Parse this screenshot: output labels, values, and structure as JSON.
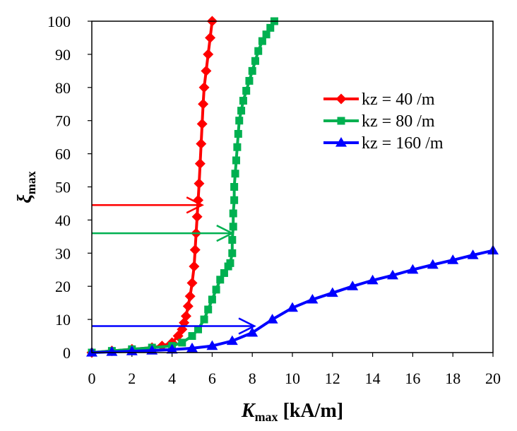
{
  "chart_data": {
    "type": "line",
    "title": "",
    "xlabel": {
      "main": "K",
      "sub": "max",
      "rest": " [kA/m]"
    },
    "ylabel": {
      "main": "ξ",
      "sub": "max"
    },
    "xlim": [
      0,
      20
    ],
    "ylim": [
      0,
      100
    ],
    "xticks": [
      0,
      2,
      4,
      6,
      8,
      10,
      12,
      14,
      16,
      18,
      20
    ],
    "yticks": [
      0,
      10,
      20,
      30,
      40,
      50,
      60,
      70,
      80,
      90,
      100
    ],
    "grid": false,
    "legend_position": "right",
    "series": [
      {
        "name": "kz = 40 /m",
        "color": "#ff0000",
        "marker": "diamond",
        "x": [
          0,
          1,
          2,
          3,
          3.5,
          4,
          4.3,
          4.5,
          4.6,
          4.7,
          4.8,
          4.9,
          5.0,
          5.1,
          5.15,
          5.2,
          5.25,
          5.3,
          5.35,
          5.4,
          5.45,
          5.5,
          5.55,
          5.6,
          5.7,
          5.8,
          5.9,
          6.0
        ],
        "y": [
          0,
          0.5,
          1,
          1.5,
          2,
          3,
          5,
          7,
          9,
          11,
          14,
          17,
          21,
          26,
          31,
          36,
          41,
          46,
          51,
          57,
          63,
          69,
          75,
          80,
          85,
          90,
          95,
          100
        ]
      },
      {
        "name": "kz = 80 /m",
        "color": "#00b050",
        "marker": "square",
        "x": [
          0,
          1,
          2,
          3,
          4,
          4.5,
          5,
          5.3,
          5.6,
          5.8,
          6.0,
          6.2,
          6.4,
          6.6,
          6.8,
          6.9,
          7.0,
          7.0,
          7.05,
          7.05,
          7.1,
          7.1,
          7.15,
          7.2,
          7.25,
          7.3,
          7.35,
          7.45,
          7.55,
          7.7,
          7.85,
          8.0,
          8.15,
          8.3,
          8.5,
          8.7,
          8.9,
          9.1
        ],
        "y": [
          0,
          0.5,
          1,
          1.5,
          2,
          3,
          5,
          7,
          10,
          13,
          16,
          19,
          22,
          24,
          26,
          27,
          30,
          34,
          38,
          42,
          46,
          50,
          54,
          58,
          62,
          66,
          70,
          73,
          76,
          79,
          82,
          85,
          88,
          91,
          94,
          96,
          98,
          100
        ]
      },
      {
        "name": "kz = 160 /m",
        "color": "#0000ff",
        "marker": "triangle",
        "x": [
          0,
          1,
          2,
          3,
          4,
          5,
          6,
          7,
          8,
          9,
          10,
          11,
          12,
          13,
          14,
          15,
          16,
          17,
          18,
          19,
          20
        ],
        "y": [
          0,
          0.2,
          0.4,
          0.6,
          0.9,
          1.3,
          2,
          3.5,
          6,
          10,
          13.5,
          16,
          18,
          20,
          21.8,
          23.3,
          25,
          26.5,
          27.9,
          29.4,
          30.8
        ]
      }
    ],
    "annotations": [
      {
        "type": "arrow",
        "color": "#ff0000",
        "from": [
          0,
          44.5
        ],
        "to": [
          5.5,
          44.5
        ]
      },
      {
        "type": "arrow",
        "color": "#00b050",
        "from": [
          0,
          36
        ],
        "to": [
          7,
          36
        ]
      },
      {
        "type": "arrow",
        "color": "#0000ff",
        "from": [
          0,
          8
        ],
        "to": [
          8.1,
          8
        ]
      }
    ]
  }
}
